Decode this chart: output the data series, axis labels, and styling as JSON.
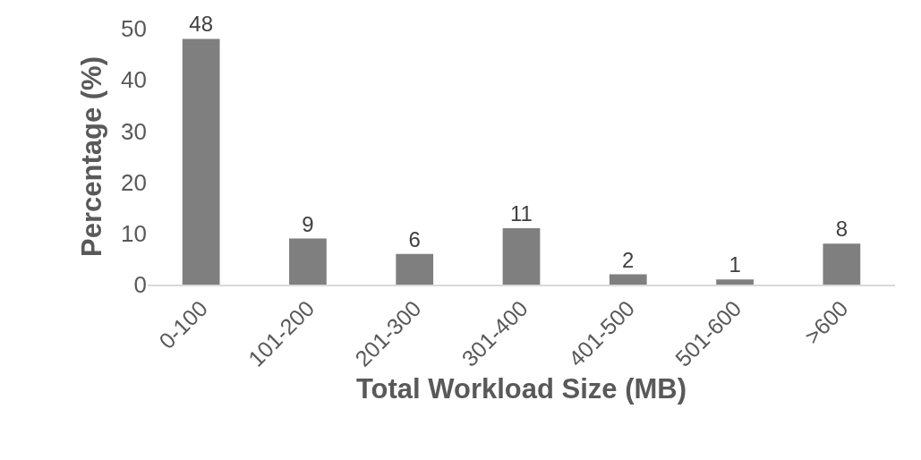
{
  "chart_data": {
    "type": "bar",
    "xlabel": "Total Workload Size (MB)",
    "ylabel": "Percentage (%)",
    "categories": [
      "0-100",
      "101-200",
      "201-300",
      "301-400",
      "401-500",
      "501-600",
      ">600"
    ],
    "values": [
      48,
      9,
      6,
      11,
      2,
      1,
      8
    ],
    "color": "#7f7f7f",
    "data_labels": true,
    "ylim": [
      0,
      50
    ],
    "yticks": [
      0,
      10,
      20,
      30,
      40,
      50
    ],
    "grid": false,
    "legend": false
  }
}
